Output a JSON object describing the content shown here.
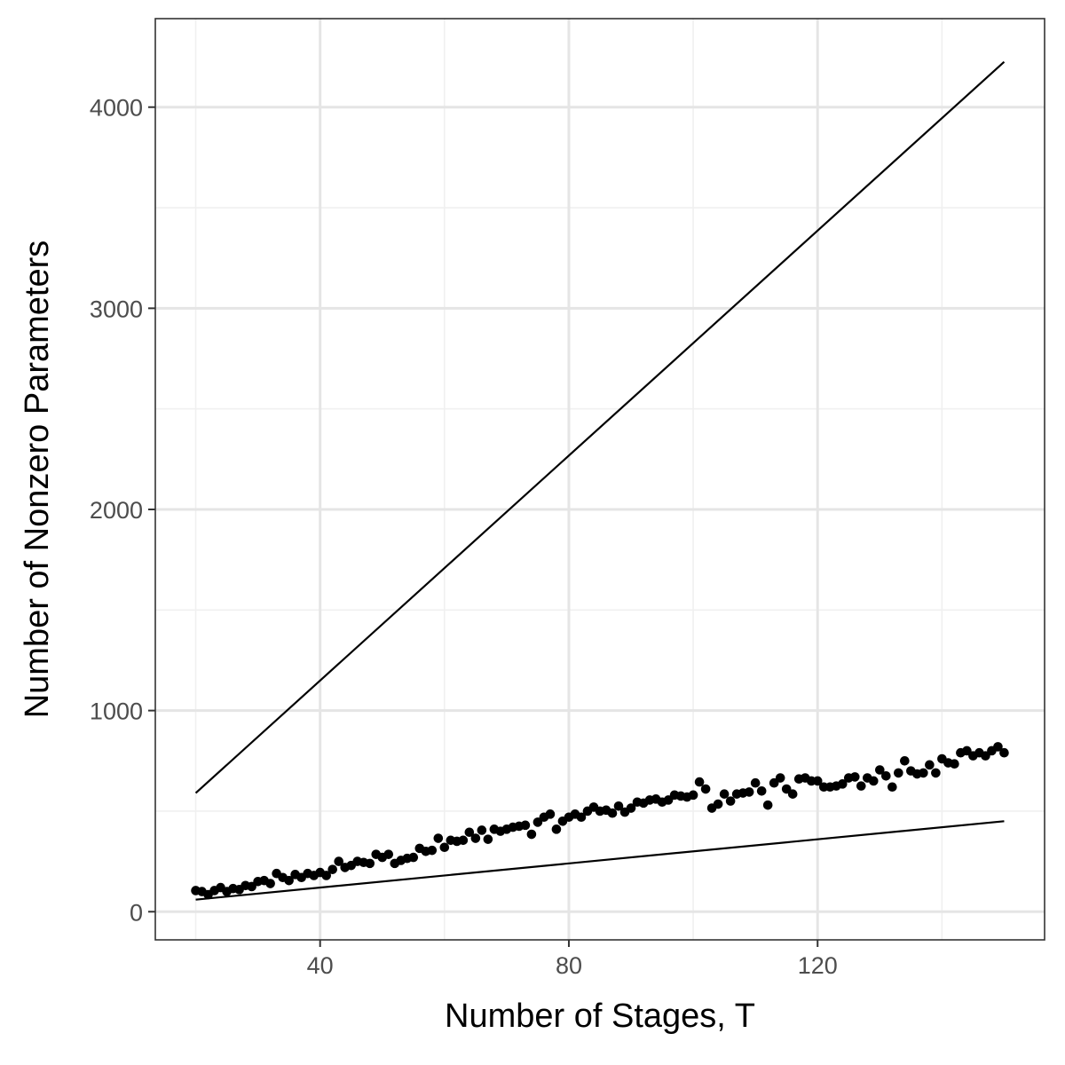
{
  "chart_data": {
    "type": "scatter",
    "title": "",
    "xlabel": "Number of Stages, T",
    "ylabel": "Number of Nonzero Parameters",
    "xlim": [
      13.5,
      156.5
    ],
    "ylim": [
      -140,
      4440
    ],
    "x_ticks": [
      40,
      80,
      120
    ],
    "x_minor": [
      20,
      60,
      100,
      140
    ],
    "y_ticks": [
      0,
      1000,
      2000,
      3000,
      4000
    ],
    "y_minor": [
      500,
      1500,
      2500,
      3500
    ],
    "grid": true,
    "legend": "none",
    "colors": {
      "points": "#000000",
      "lines": "#000000",
      "grid": "#e5e5e5"
    },
    "series": [
      {
        "kind": "line",
        "x": [
          20,
          150
        ],
        "y": [
          590,
          4225
        ]
      },
      {
        "kind": "line",
        "x": [
          20,
          150
        ],
        "y": [
          60,
          450
        ]
      },
      {
        "kind": "points",
        "x": [
          20,
          21,
          22,
          23,
          24,
          25,
          26,
          27,
          28,
          29,
          30,
          31,
          32,
          33,
          34,
          35,
          36,
          37,
          38,
          39,
          40,
          41,
          42,
          43,
          44,
          45,
          46,
          47,
          48,
          49,
          50,
          51,
          52,
          53,
          54,
          55,
          56,
          57,
          58,
          59,
          60,
          61,
          62,
          63,
          64,
          65,
          66,
          67,
          68,
          69,
          70,
          71,
          72,
          73,
          74,
          75,
          76,
          77,
          78,
          79,
          80,
          81,
          82,
          83,
          84,
          85,
          86,
          87,
          88,
          89,
          90,
          91,
          92,
          93,
          94,
          95,
          96,
          97,
          98,
          99,
          100,
          101,
          102,
          103,
          104,
          105,
          106,
          107,
          108,
          109,
          110,
          111,
          112,
          113,
          114,
          115,
          116,
          117,
          118,
          119,
          120,
          121,
          122,
          123,
          124,
          125,
          126,
          127,
          128,
          129,
          130,
          131,
          132,
          133,
          134,
          135,
          136,
          137,
          138,
          139,
          140,
          141,
          142,
          143,
          144,
          145,
          146,
          147,
          148,
          149,
          150
        ],
        "y": [
          105,
          100,
          85,
          105,
          120,
          100,
          115,
          110,
          130,
          125,
          150,
          155,
          140,
          190,
          170,
          155,
          185,
          170,
          190,
          180,
          195,
          180,
          210,
          250,
          220,
          230,
          250,
          245,
          240,
          285,
          270,
          285,
          240,
          255,
          265,
          270,
          315,
          300,
          305,
          365,
          320,
          355,
          350,
          355,
          395,
          365,
          405,
          360,
          410,
          400,
          410,
          420,
          425,
          430,
          385,
          445,
          470,
          485,
          410,
          450,
          470,
          485,
          470,
          500,
          520,
          500,
          505,
          490,
          525,
          495,
          515,
          545,
          540,
          555,
          560,
          545,
          555,
          580,
          575,
          570,
          580,
          645,
          610,
          515,
          535,
          585,
          550,
          585,
          590,
          595,
          640,
          600,
          530,
          640,
          665,
          610,
          585,
          660,
          665,
          650,
          650,
          620,
          620,
          625,
          635,
          665,
          670,
          625,
          665,
          650,
          705,
          675,
          620,
          690,
          750,
          700,
          685,
          690,
          730,
          690,
          760,
          740,
          735,
          790,
          800,
          775,
          790,
          775,
          800,
          820,
          790
        ]
      }
    ]
  }
}
